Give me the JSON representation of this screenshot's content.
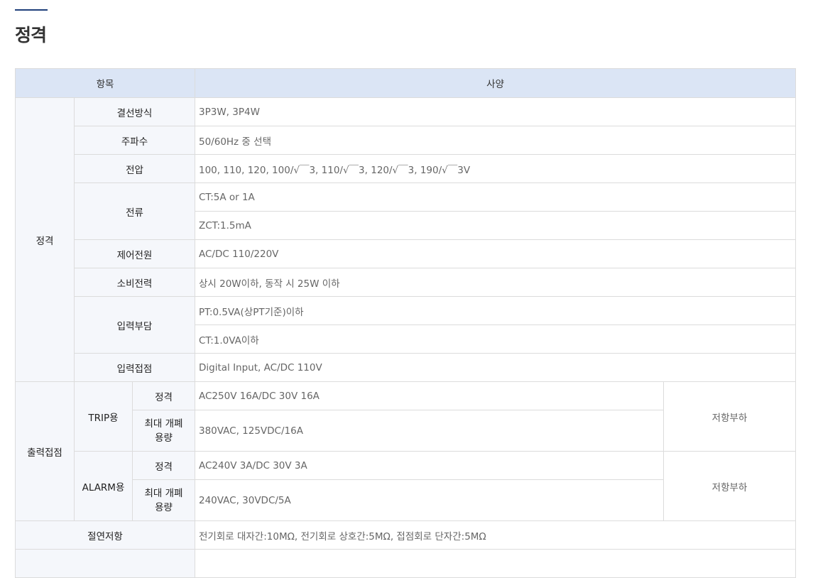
{
  "title": "정격",
  "header": {
    "item": "항목",
    "spec": "사양"
  },
  "rating": {
    "label": "정격",
    "wiring": {
      "label": "결선방식",
      "value": "3P3W, 3P4W"
    },
    "frequency": {
      "label": "주파수",
      "value": "50/60Hz 중 선택"
    },
    "voltage": {
      "label": "전압",
      "value": "100, 110, 120, 100/√￣3, 110/√￣3, 120/√￣3, 190/√￣3V"
    },
    "current": {
      "label": "전류",
      "values": [
        "CT:5A or 1A",
        "ZCT:1.5mA"
      ]
    },
    "control_power": {
      "label": "제어전원",
      "value": "AC/DC 110/220V"
    },
    "power_consumption": {
      "label": "소비전력",
      "value": "상시 20W이하, 동작 시 25W 이하"
    },
    "input_burden": {
      "label": "입력부담",
      "values": [
        "PT:0.5VA(상PT기준)이하",
        "CT:1.0VA이하"
      ]
    },
    "input_contact": {
      "label": "입력접점",
      "value": "Digital Input, AC/DC 110V"
    }
  },
  "output_contact": {
    "label": "출력접점",
    "trip": {
      "label": "TRIP용",
      "rating_label": "정격",
      "rating": "AC250V 16A/DC 30V 16A",
      "max_label_1": "최대 개폐",
      "max_label_2": "용량",
      "max": "380VAC, 125VDC/16A",
      "load": "저항부하"
    },
    "alarm": {
      "label": "ALARM용",
      "rating_label": "정격",
      "rating": "AC240V 3A/DC 30V 3A",
      "max_label_1": "최대 개폐",
      "max_label_2": "용량",
      "max": "240VAC, 30VDC/5A",
      "load": "저항부하"
    }
  },
  "insulation": {
    "label": "절연저항",
    "value": "전기회로 대자간:10MΩ, 전기회로 상호간:5MΩ, 접점회로 단자간:5MΩ"
  }
}
